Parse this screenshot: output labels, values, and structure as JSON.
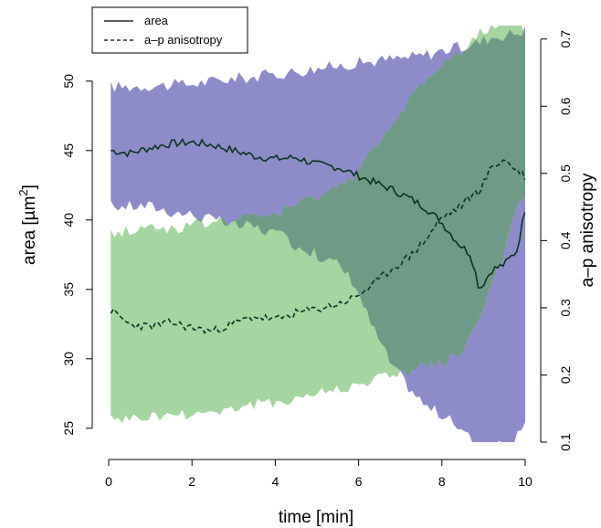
{
  "chart_data": {
    "type": "line",
    "xlabel": "time [min]",
    "ylabel_left": {
      "text": "area [µm",
      "sup": "2",
      "tail": "]"
    },
    "ylabel_right": "a–p anisotropy",
    "xlim": [
      0,
      10
    ],
    "ylim_left": [
      24,
      54
    ],
    "ylim_right": [
      0.1,
      0.72
    ],
    "x_ticks": [
      0,
      2,
      4,
      6,
      8,
      10
    ],
    "y_left_ticks": [
      25,
      30,
      35,
      40,
      45,
      50
    ],
    "y_right_ticks": [
      0.1,
      0.2,
      0.3,
      0.4,
      0.5,
      0.6,
      0.7
    ],
    "legend": {
      "placement": "top-left",
      "entries": [
        {
          "label": "area",
          "style": "solid"
        },
        {
          "label": "a–p anisotropy",
          "style": "dashed"
        }
      ]
    },
    "colors": {
      "area_band": "#8e8cc8",
      "anisotropy_band": "#a6d5a1",
      "overlap": "#6f9b86",
      "line": "#0a3320"
    },
    "series": [
      {
        "name": "area",
        "axis": "left",
        "style": "solid",
        "x": [
          0.05,
          0.5,
          1.0,
          1.5,
          2.0,
          2.5,
          3.0,
          3.5,
          4.0,
          4.5,
          5.0,
          5.5,
          5.9,
          6.3,
          6.8,
          7.2,
          7.6,
          8.0,
          8.4,
          8.7,
          8.9,
          9.2,
          9.5,
          9.8,
          10.0
        ],
        "y": [
          45.0,
          44.8,
          45.2,
          45.5,
          45.6,
          45.4,
          45.0,
          44.6,
          44.4,
          44.5,
          44.0,
          43.8,
          43.3,
          42.8,
          42.2,
          41.6,
          40.9,
          39.8,
          38.3,
          37.5,
          35.0,
          36.4,
          36.8,
          37.8,
          40.8
        ],
        "band_lower": [
          41.0,
          41.0,
          41.0,
          40.6,
          40.4,
          40.0,
          39.6,
          39.5,
          39.0,
          38.2,
          37.5,
          36.8,
          35.5,
          32.5,
          29.5,
          28.0,
          26.6,
          26.0,
          25.0,
          24.2,
          23.5,
          23.5,
          23.8,
          24.3,
          25.0
        ],
        "band_upper": [
          49.6,
          49.6,
          49.7,
          49.7,
          49.8,
          50.0,
          50.2,
          50.3,
          50.5,
          50.7,
          50.9,
          51.1,
          51.3,
          51.4,
          51.6,
          51.7,
          51.9,
          52.2,
          52.4,
          52.6,
          52.8,
          53.2,
          53.3,
          53.5,
          53.7
        ]
      },
      {
        "name": "a–p anisotropy",
        "axis": "right",
        "style": "dashed",
        "x": [
          0.05,
          0.5,
          1.0,
          1.5,
          2.0,
          2.5,
          3.0,
          3.5,
          4.0,
          4.5,
          5.0,
          5.5,
          5.9,
          6.3,
          6.8,
          7.2,
          7.6,
          8.0,
          8.4,
          8.7,
          8.9,
          9.2,
          9.5,
          9.8,
          10.0
        ],
        "y": [
          0.296,
          0.275,
          0.272,
          0.278,
          0.27,
          0.265,
          0.277,
          0.287,
          0.282,
          0.292,
          0.298,
          0.305,
          0.315,
          0.332,
          0.358,
          0.375,
          0.4,
          0.435,
          0.448,
          0.466,
          0.474,
          0.51,
          0.52,
          0.505,
          0.495
        ],
        "band_lower": [
          0.132,
          0.135,
          0.137,
          0.14,
          0.142,
          0.145,
          0.15,
          0.155,
          0.16,
          0.165,
          0.172,
          0.178,
          0.184,
          0.192,
          0.2,
          0.206,
          0.212,
          0.218,
          0.23,
          0.255,
          0.285,
          0.33,
          0.38,
          0.45,
          0.47
        ],
        "band_upper": [
          0.41,
          0.415,
          0.42,
          0.418,
          0.422,
          0.428,
          0.43,
          0.435,
          0.44,
          0.452,
          0.466,
          0.48,
          0.5,
          0.53,
          0.565,
          0.61,
          0.64,
          0.66,
          0.68,
          0.7,
          0.71,
          0.715,
          0.718,
          0.716,
          0.712
        ]
      }
    ]
  }
}
